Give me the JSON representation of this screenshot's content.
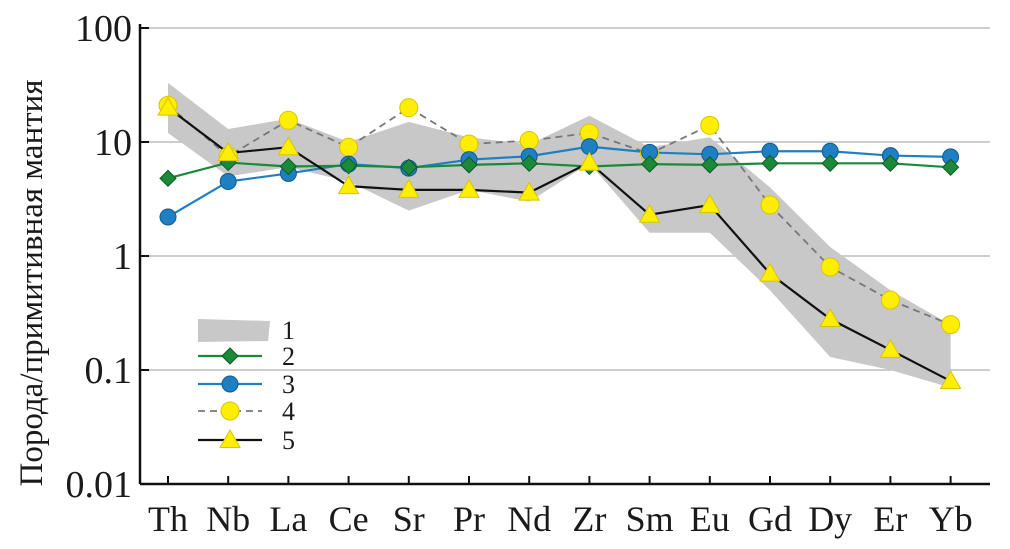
{
  "chart_data": {
    "type": "line",
    "title": "",
    "xlabel": "",
    "ylabel": "Порода/примитивная мантия",
    "yscale": "log",
    "ylim": [
      0.01,
      100
    ],
    "yticks": [
      "0.01",
      "0.1",
      "1",
      "10",
      "100"
    ],
    "grid": "horizontal",
    "legend_position": "bottom-left",
    "categories": [
      "Th",
      "Nb",
      "La",
      "Ce",
      "Sr",
      "Pr",
      "Nd",
      "Zr",
      "Sm",
      "Eu",
      "Gd",
      "Dy",
      "Er",
      "Yb"
    ],
    "band": {
      "name": "1",
      "color": "#c8c8c8",
      "upper": [
        33,
        13,
        16,
        10,
        15,
        11,
        9.5,
        17,
        9,
        11,
        4,
        1.2,
        0.5,
        0.25
      ],
      "lower": [
        12,
        5,
        6,
        4.5,
        2.5,
        3.8,
        3,
        6.5,
        1.6,
        1.6,
        0.5,
        0.13,
        0.1,
        0.07
      ]
    },
    "series": [
      {
        "name": "2",
        "color": "#1a8a3a",
        "marker": "diamond",
        "dash": "solid",
        "values": [
          4.8,
          6.6,
          6.1,
          6.2,
          6.0,
          6.3,
          6.5,
          6.1,
          6.4,
          6.3,
          6.5,
          6.5,
          6.5,
          6.0
        ]
      },
      {
        "name": "3",
        "color": "#1e7fc2",
        "marker": "circle",
        "dash": "solid",
        "values": [
          2.2,
          4.5,
          5.3,
          6.4,
          5.9,
          7.0,
          7.5,
          9.1,
          8.1,
          7.8,
          8.3,
          8.3,
          7.6,
          7.4
        ]
      },
      {
        "name": "4",
        "color": "#777777",
        "marker": "circle-yellow",
        "dash": "dashed",
        "values": [
          21,
          7.5,
          15.5,
          9.0,
          20,
          9.6,
          10.3,
          12,
          7.9,
          14,
          2.8,
          0.8,
          0.41,
          0.25
        ]
      },
      {
        "name": "5",
        "color": "#111111",
        "marker": "triangle-yellow",
        "dash": "solid",
        "values": [
          20,
          8.0,
          9.0,
          4.1,
          3.8,
          3.8,
          3.6,
          6.6,
          2.3,
          2.8,
          0.7,
          0.28,
          0.15,
          0.08
        ]
      }
    ],
    "colors": {
      "marker_fill_yellow": "#ffee00",
      "grid": "#bdbdbd",
      "axis": "#111111"
    }
  }
}
